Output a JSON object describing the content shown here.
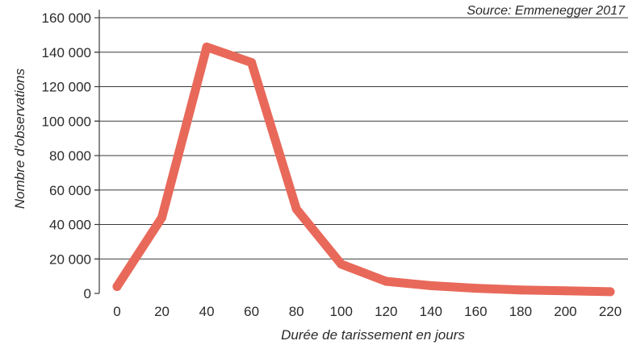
{
  "chart_data": {
    "type": "line",
    "source": "Source: Emmenegger 2017",
    "xlabel": "Durée de tarissement en jours",
    "ylabel": "Nombre d'observations",
    "ylim": [
      0,
      160000
    ],
    "y_ticks": [
      0,
      20000,
      40000,
      60000,
      80000,
      100000,
      120000,
      140000,
      160000
    ],
    "y_tick_labels": [
      "0",
      "20 000",
      "40 000",
      "60 000",
      "80 000",
      "100 000",
      "120 000",
      "140 000",
      "160 000"
    ],
    "x_ticks": [
      0,
      20,
      40,
      60,
      80,
      100,
      120,
      140,
      160,
      180,
      200,
      220
    ],
    "x_tick_labels": [
      "0",
      "20",
      "40",
      "60",
      "80",
      "100",
      "120",
      "140",
      "160",
      "180",
      "200",
      "220"
    ],
    "grid": true,
    "colors": {
      "line": "#e8695a"
    },
    "series": [
      {
        "x": [
          0,
          20,
          40,
          60,
          80,
          100,
          120,
          140,
          160,
          180,
          200,
          220
        ],
        "values": [
          4000,
          44000,
          143000,
          134000,
          49000,
          17000,
          7000,
          4500,
          3000,
          2000,
          1500,
          1000
        ]
      }
    ]
  }
}
